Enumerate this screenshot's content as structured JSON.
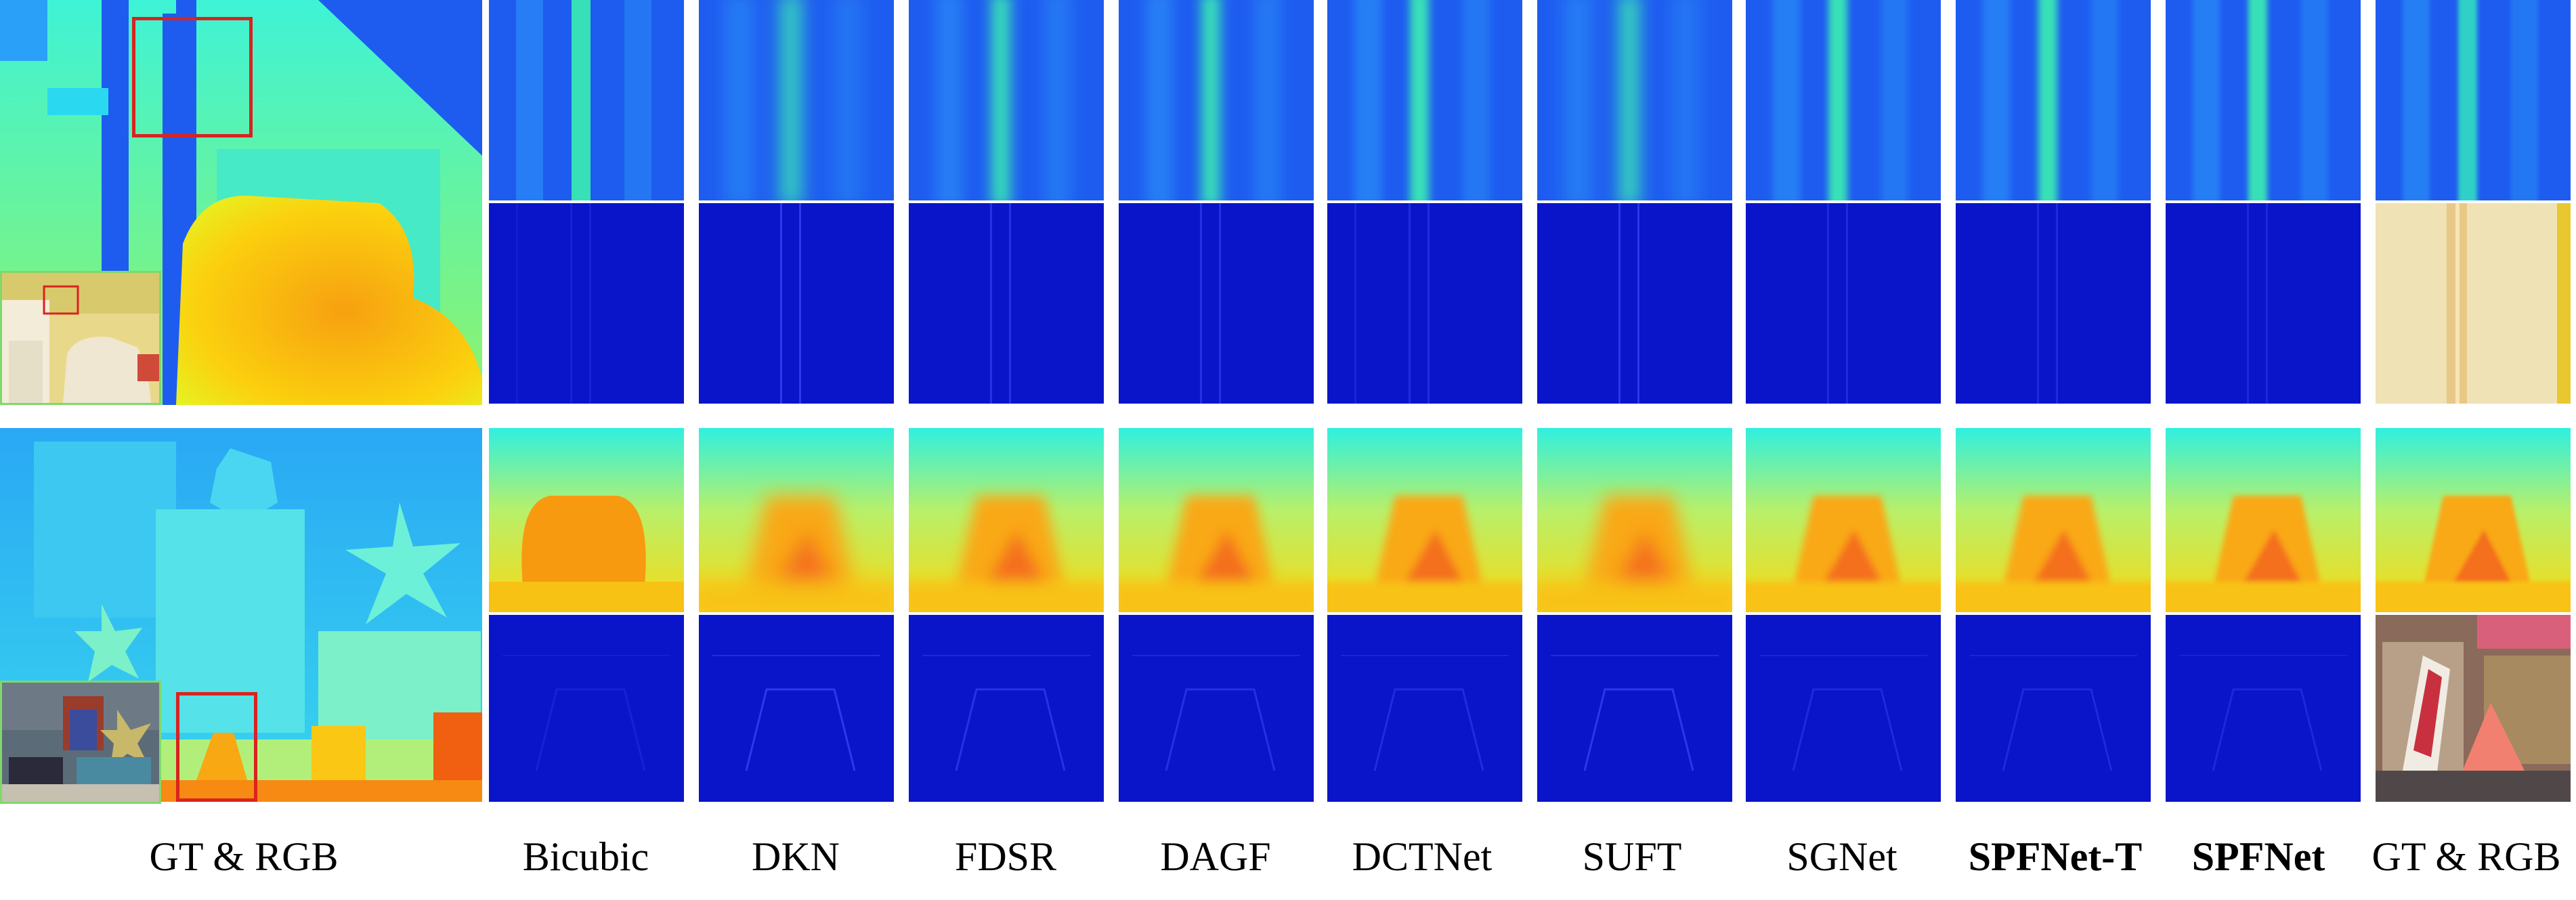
{
  "columns": [
    {
      "label": "GT & RGB",
      "bold": false
    },
    {
      "label": "Bicubic",
      "bold": false
    },
    {
      "label": "DKN",
      "bold": false
    },
    {
      "label": "FDSR",
      "bold": false
    },
    {
      "label": "DAGF",
      "bold": false
    },
    {
      "label": "DCTNet",
      "bold": false
    },
    {
      "label": "SUFT",
      "bold": false
    },
    {
      "label": "SGNet",
      "bold": false
    },
    {
      "label": "SPFNet-T",
      "bold": true
    },
    {
      "label": "SPFNet",
      "bold": true
    },
    {
      "label": "GT & RGB",
      "bold": false
    }
  ],
  "colors": {
    "depth_far": "#1e5cf0",
    "depth_mid": "#2ff0e0",
    "depth_near": "#f9a20f",
    "error_bg": "#0a14c8",
    "roi_box": "#d9231f",
    "inset_border": "#7fd86a"
  }
}
